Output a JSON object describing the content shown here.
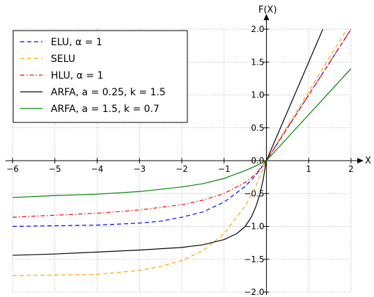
{
  "chart_data": {
    "type": "line",
    "xlabel": "X",
    "ylabel": "F(X)",
    "xlim": [
      -6,
      2
    ],
    "ylim": [
      -2,
      2
    ],
    "grid": true,
    "grid_style": "dotted",
    "legend_position": "top-left",
    "x_ticks": [
      {
        "v": -6,
        "label": "−6"
      },
      {
        "v": -5,
        "label": "−5"
      },
      {
        "v": -4,
        "label": "−4"
      },
      {
        "v": -3,
        "label": "−3"
      },
      {
        "v": -2,
        "label": "−2"
      },
      {
        "v": -1,
        "label": "−1"
      },
      {
        "v": 0,
        "label": ""
      },
      {
        "v": 1,
        "label": "1"
      },
      {
        "v": 2,
        "label": "2"
      }
    ],
    "y_ticks": [
      {
        "v": -2,
        "label": "−2.0"
      },
      {
        "v": -1.5,
        "label": "−1.5"
      },
      {
        "v": -1,
        "label": "−1.0"
      },
      {
        "v": -0.5,
        "label": "−0.5"
      },
      {
        "v": 0,
        "label": "0.0"
      },
      {
        "v": 0.5,
        "label": "0.5"
      },
      {
        "v": 1,
        "label": "1.0"
      },
      {
        "v": 1.5,
        "label": "1.5"
      },
      {
        "v": 2,
        "label": "2.0"
      }
    ],
    "series": [
      {
        "name": "ELU, α = 1",
        "color": "#0000ff",
        "dash": "6,4",
        "width": 1.2,
        "x": [
          -6,
          -5,
          -4,
          -3,
          -2.5,
          -2,
          -1.5,
          -1,
          -0.5,
          -0.25,
          0,
          0.5,
          1,
          1.5,
          2
        ],
        "y": [
          -1.0,
          -0.99,
          -0.98,
          -0.95,
          -0.92,
          -0.86,
          -0.78,
          -0.63,
          -0.39,
          -0.22,
          0,
          0.5,
          1,
          1.5,
          2
        ]
      },
      {
        "name": "SELU",
        "color": "#ffa500",
        "dash": "6,4",
        "width": 1.2,
        "x": [
          -6,
          -5,
          -4,
          -3,
          -2.5,
          -2,
          -1.5,
          -1,
          -0.5,
          -0.25,
          0,
          0.5,
          1,
          1.5,
          2
        ],
        "y": [
          -1.75,
          -1.74,
          -1.73,
          -1.67,
          -1.61,
          -1.52,
          -1.37,
          -1.11,
          -0.69,
          -0.39,
          0,
          0.53,
          1.05,
          1.58,
          2.1
        ]
      },
      {
        "name": "HLU, α = 1",
        "color": "#ff0000",
        "dash": "6,3,1.5,3",
        "width": 1.2,
        "x": [
          -6,
          -5,
          -4,
          -3,
          -2.5,
          -2,
          -1.5,
          -1,
          -0.5,
          -0.25,
          0,
          0.5,
          1,
          1.5,
          2
        ],
        "y": [
          -0.86,
          -0.83,
          -0.8,
          -0.75,
          -0.71,
          -0.67,
          -0.6,
          -0.5,
          -0.33,
          -0.2,
          0,
          0.5,
          1,
          1.5,
          2
        ]
      },
      {
        "name": "ARFA, a = 0.25, k = 1.5",
        "color": "#000000",
        "dash": "",
        "width": 1.2,
        "x": [
          -6,
          -5,
          -4,
          -3,
          -2,
          -1.5,
          -1,
          -0.7,
          -0.5,
          -0.35,
          -0.25,
          -0.15,
          -0.08,
          0,
          1.5
        ],
        "y": [
          -1.44,
          -1.42,
          -1.39,
          -1.36,
          -1.32,
          -1.28,
          -1.2,
          -1.11,
          -1.0,
          -0.85,
          -0.7,
          -0.5,
          -0.3,
          0,
          2.25
        ]
      },
      {
        "name": "ARFA, a = 1.5, k = 0.7",
        "color": "#008000",
        "dash": "",
        "width": 1.2,
        "x": [
          -6,
          -5,
          -4,
          -3,
          -2,
          -1.5,
          -1,
          -0.5,
          -0.25,
          0,
          1,
          2
        ],
        "y": [
          -0.56,
          -0.53,
          -0.51,
          -0.47,
          -0.4,
          -0.35,
          -0.27,
          -0.15,
          -0.08,
          0,
          0.7,
          1.4
        ]
      }
    ]
  }
}
